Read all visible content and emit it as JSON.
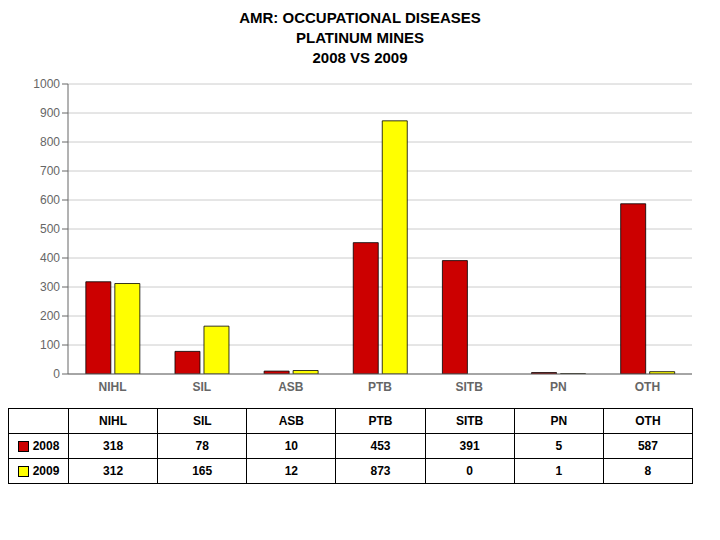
{
  "chart_data": {
    "type": "bar",
    "title": "AMR: OCCUPATIONAL DISEASES\nPLATINUM MINES\n2008 VS 2009",
    "categories": [
      "NIHL",
      "SIL",
      "ASB",
      "PTB",
      "SITB",
      "PN",
      "OTH"
    ],
    "series": [
      {
        "name": "2008",
        "color": "#CC0000",
        "values": [
          318,
          78,
          10,
          453,
          391,
          5,
          587
        ]
      },
      {
        "name": "2009",
        "color": "#FFFF00",
        "values": [
          312,
          165,
          12,
          873,
          0,
          1,
          8
        ]
      }
    ],
    "ylim": [
      0,
      1000
    ],
    "yticks": [
      0,
      100,
      200,
      300,
      400,
      500,
      600,
      700,
      800,
      900,
      1000
    ],
    "grid": true
  }
}
